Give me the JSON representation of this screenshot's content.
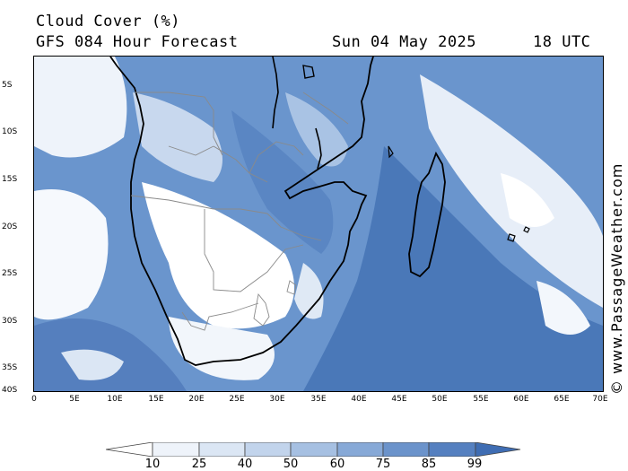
{
  "header": {
    "title": "Cloud Cover (%)",
    "subtitle": "GFS 084 Hour Forecast",
    "date": "Sun 04 May 2025",
    "time": "18 UTC"
  },
  "watermark": "© www.PassageWeather.com",
  "axes": {
    "y_labels": [
      "5S",
      "10S",
      "15S",
      "20S",
      "25S",
      "30S",
      "35S",
      "40S"
    ],
    "x_labels": [
      "0",
      "5E",
      "10E",
      "15E",
      "20E",
      "25E",
      "30E",
      "35E",
      "40E",
      "45E",
      "50E",
      "55E",
      "60E",
      "65E",
      "70E"
    ]
  },
  "colorbar": {
    "levels": [
      "10",
      "25",
      "40",
      "50",
      "60",
      "75",
      "85",
      "99"
    ],
    "colors": [
      "#ffffff",
      "#eef3fa",
      "#dbe6f4",
      "#c2d4ec",
      "#a6c0e2",
      "#87a9d7",
      "#6b93cb",
      "#5580c0",
      "#3f6db3"
    ]
  }
}
